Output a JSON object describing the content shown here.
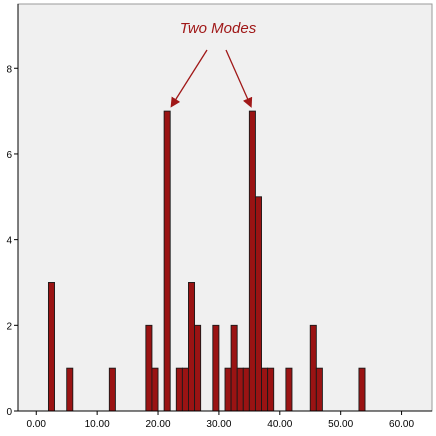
{
  "chart_data": {
    "type": "bar",
    "title": "",
    "xlabel": "",
    "ylabel": "",
    "xlim": [
      -3,
      65
    ],
    "ylim": [
      0,
      9.5
    ],
    "x_ticks": [
      0,
      10,
      20,
      30,
      40,
      50,
      60
    ],
    "x_tick_labels": [
      "0.00",
      "10.00",
      "20.00",
      "30.00",
      "40.00",
      "50.00",
      "60.00"
    ],
    "y_ticks": [
      0,
      2,
      4,
      6,
      8
    ],
    "y_tick_labels": [
      "0",
      "2",
      "4",
      "6",
      "8"
    ],
    "bin_width": 1,
    "bins": [
      {
        "x": 2.5,
        "count": 3
      },
      {
        "x": 5.5,
        "count": 1
      },
      {
        "x": 12.5,
        "count": 1
      },
      {
        "x": 18.5,
        "count": 2
      },
      {
        "x": 19.5,
        "count": 1
      },
      {
        "x": 21.5,
        "count": 7
      },
      {
        "x": 23.5,
        "count": 1
      },
      {
        "x": 24.5,
        "count": 1
      },
      {
        "x": 25.5,
        "count": 3
      },
      {
        "x": 26.5,
        "count": 2
      },
      {
        "x": 29.5,
        "count": 2
      },
      {
        "x": 31.5,
        "count": 1
      },
      {
        "x": 32.5,
        "count": 2
      },
      {
        "x": 33.5,
        "count": 1
      },
      {
        "x": 34.5,
        "count": 1
      },
      {
        "x": 35.5,
        "count": 7
      },
      {
        "x": 36.5,
        "count": 5
      },
      {
        "x": 37.5,
        "count": 1
      },
      {
        "x": 38.5,
        "count": 1
      },
      {
        "x": 41.5,
        "count": 1
      },
      {
        "x": 45.5,
        "count": 2
      },
      {
        "x": 46.5,
        "count": 1
      },
      {
        "x": 53.5,
        "count": 1
      }
    ],
    "annotation": {
      "text": "Two Modes",
      "targets": [
        21.5,
        35.5
      ]
    },
    "grid": false,
    "legend": "none"
  },
  "colors": {
    "plot_background": "#f0f0f0",
    "bar_fill": "#9a1313",
    "bar_stroke": "#1a1a1a",
    "annotation": "#a01818",
    "axis": "#000000"
  }
}
